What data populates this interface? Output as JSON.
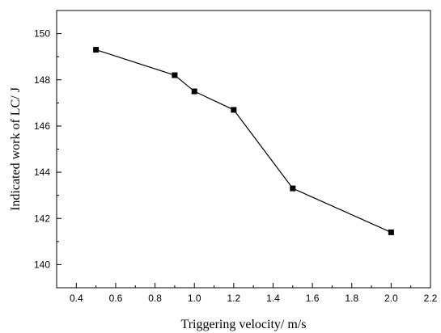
{
  "chart_data": {
    "type": "line",
    "title": "",
    "xlabel": "Triggering velocity/ m/s",
    "ylabel": "Indicated work of LC/ J",
    "xlim": [
      0.3,
      2.2
    ],
    "ylim": [
      139,
      151
    ],
    "x_ticks": [
      0.4,
      0.6,
      0.8,
      1.0,
      1.2,
      1.4,
      1.6,
      1.8,
      2.0,
      2.2
    ],
    "x_tick_labels": [
      "0.4",
      "0.6",
      "0.8",
      "1.0",
      "1.2",
      "1.4",
      "1.6",
      "1.8",
      "2.0",
      "2.2"
    ],
    "y_ticks": [
      140,
      142,
      144,
      146,
      148,
      150
    ],
    "y_tick_labels": [
      "140",
      "142",
      "144",
      "146",
      "148",
      "150"
    ],
    "grid": false,
    "legend": "none",
    "series": [
      {
        "x": [
          0.5,
          0.9,
          1.0,
          1.2,
          1.5,
          2.0
        ],
        "y": [
          149.3,
          148.2,
          147.5,
          146.7,
          143.3,
          141.4
        ],
        "marker": "square",
        "color": "#000000"
      }
    ]
  }
}
